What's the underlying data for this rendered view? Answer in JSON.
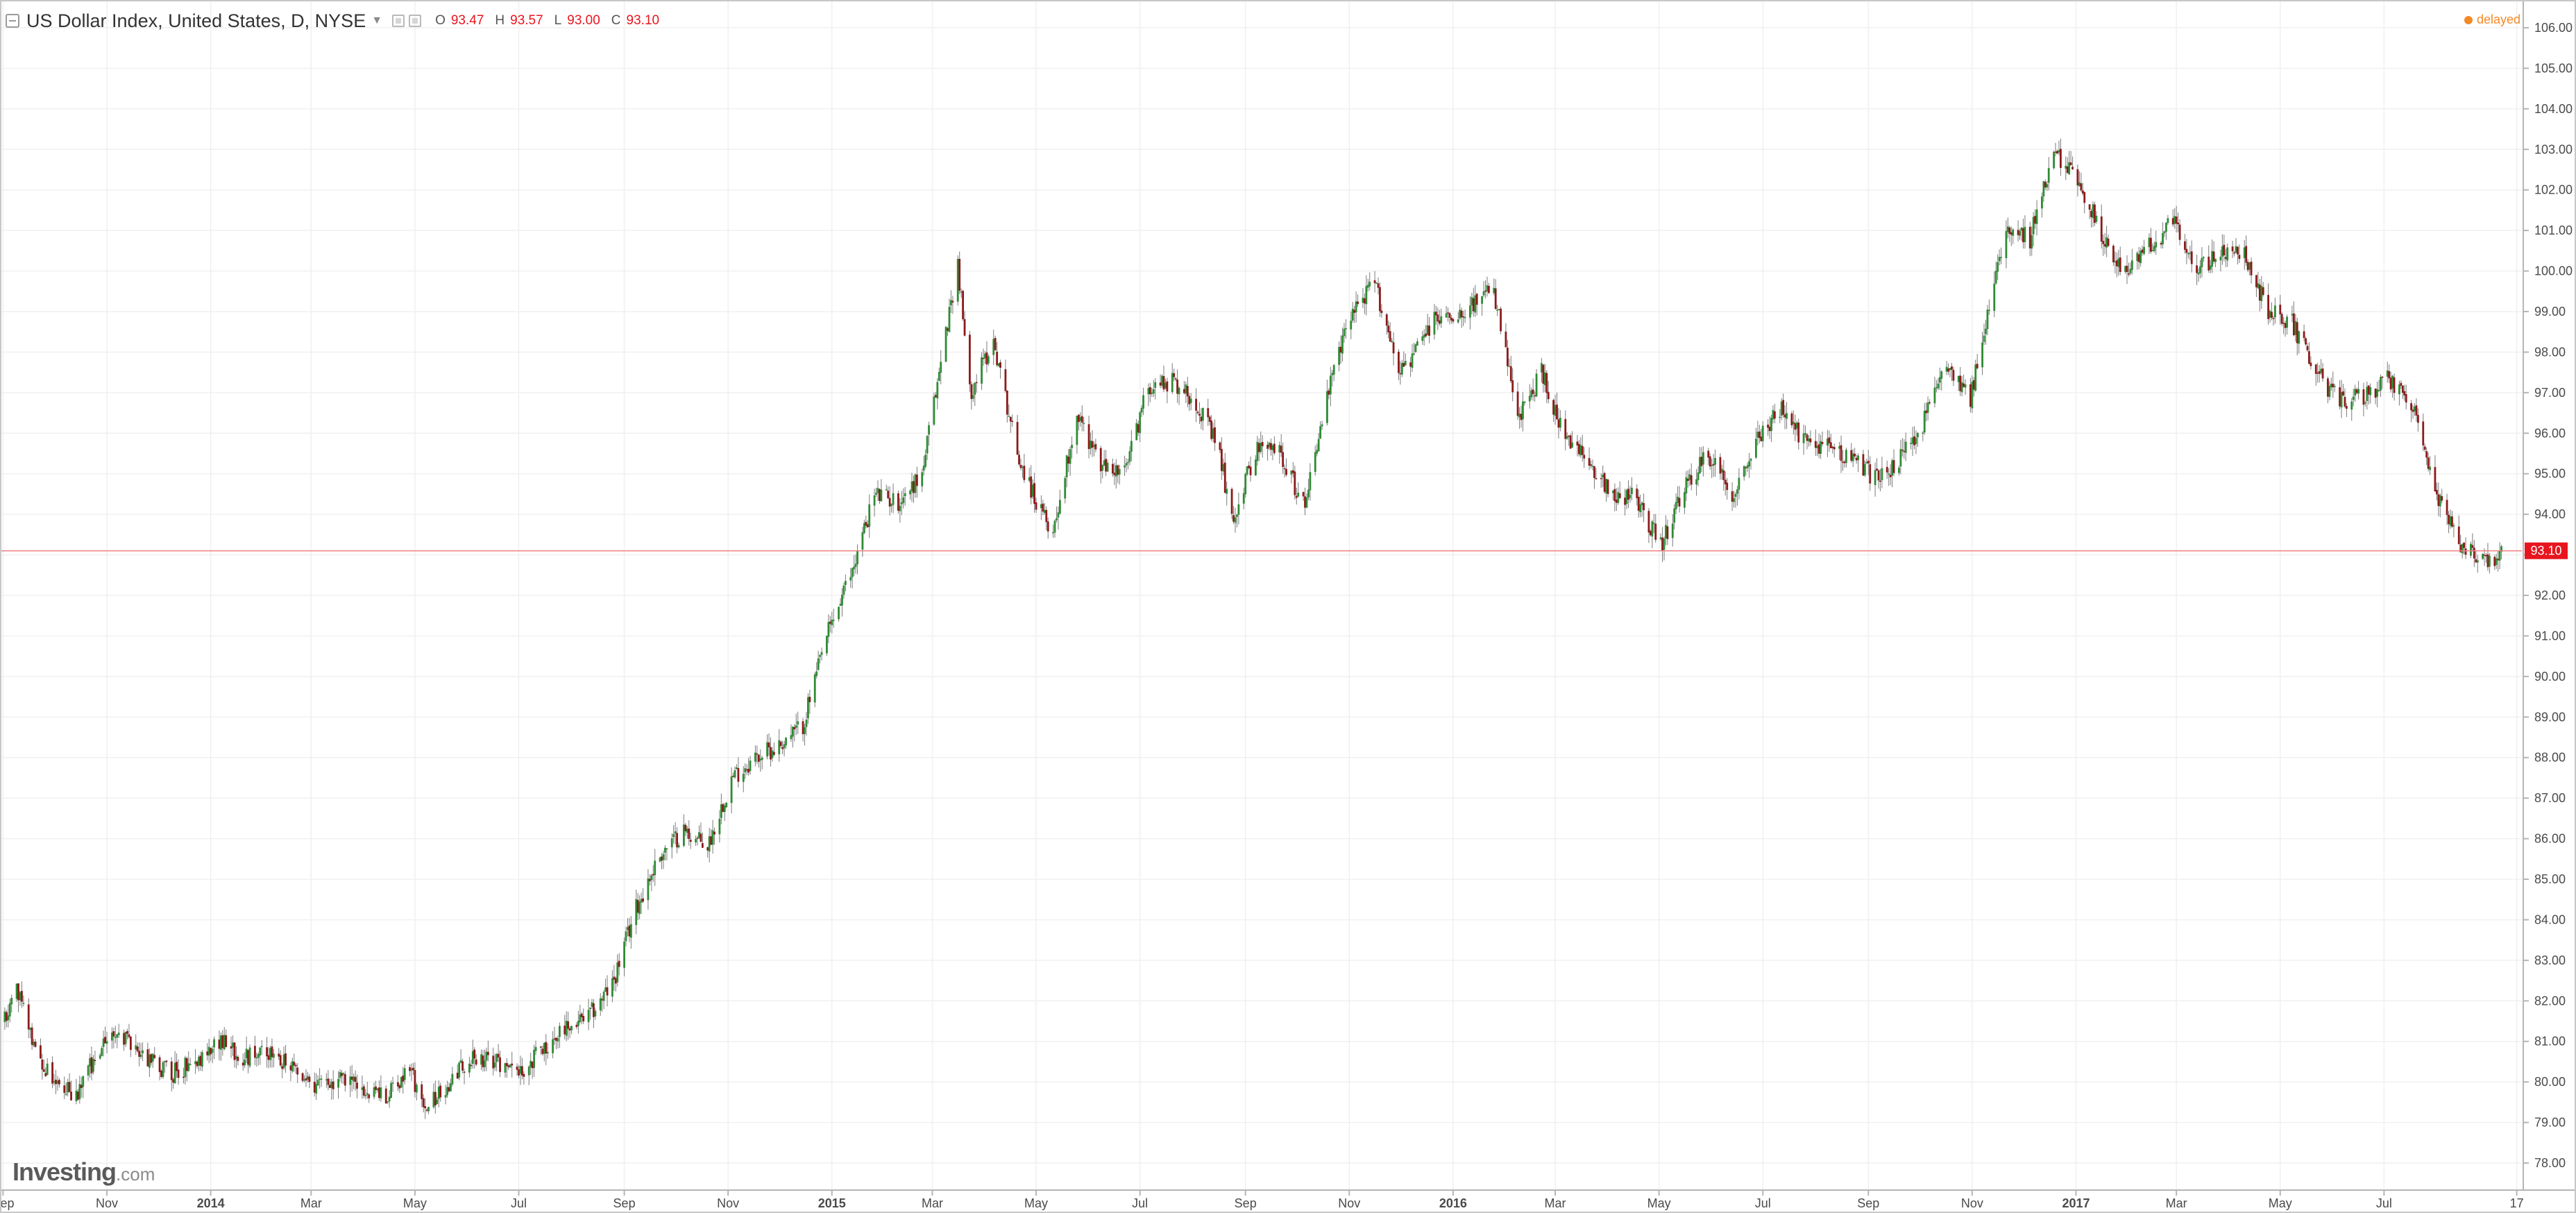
{
  "header": {
    "title": "US Dollar Index, United States, D, NYSE",
    "ohlc": [
      {
        "key": "O",
        "value": "93.47"
      },
      {
        "key": "H",
        "value": "93.57"
      },
      {
        "key": "L",
        "value": "93.00"
      },
      {
        "key": "C",
        "value": "93.10"
      }
    ]
  },
  "status": {
    "delayed": "delayed"
  },
  "branding": {
    "name": "Investing",
    "suffix": ".com"
  },
  "colors": {
    "up_candle": "#2e8b34",
    "down_candle": "#8b1a1a",
    "price_line": "#f08080",
    "price_tag": "#e8151e",
    "grid": "#f0f0f0",
    "delayed": "#f28a28"
  },
  "chart_data": {
    "type": "line",
    "title": "",
    "candle_style": "candlestick",
    "series": [
      {
        "x": [
          "2013-09-02",
          "2013-09-09",
          "2013-09-16",
          "2013-09-23",
          "2013-09-30",
          "2013-10-14",
          "2013-10-28",
          "2013-11-11",
          "2013-11-25",
          "2013-12-09",
          "2013-12-23",
          "2014-01-06",
          "2014-01-20",
          "2014-02-03",
          "2014-02-17",
          "2014-03-03",
          "2014-03-17",
          "2014-03-31",
          "2014-04-14",
          "2014-04-28",
          "2014-05-05",
          "2014-05-19",
          "2014-06-02",
          "2014-06-16",
          "2014-06-30",
          "2014-07-14",
          "2014-07-28",
          "2014-08-11",
          "2014-08-25",
          "2014-09-08",
          "2014-09-22",
          "2014-10-06",
          "2014-10-20",
          "2014-11-03",
          "2014-11-17",
          "2014-12-01",
          "2014-12-15",
          "2014-12-29",
          "2015-01-12",
          "2015-01-26",
          "2015-02-09",
          "2015-02-23",
          "2015-03-09",
          "2015-03-16",
          "2015-03-23",
          "2015-04-06",
          "2015-04-20",
          "2015-05-04",
          "2015-05-11",
          "2015-05-25",
          "2015-06-08",
          "2015-06-22",
          "2015-07-06",
          "2015-07-20",
          "2015-08-03",
          "2015-08-17",
          "2015-08-24",
          "2015-09-07",
          "2015-09-21",
          "2015-10-05",
          "2015-10-19",
          "2015-11-02",
          "2015-11-16",
          "2015-11-30",
          "2015-12-07",
          "2015-12-21",
          "2016-01-04",
          "2016-01-25",
          "2016-02-08",
          "2016-02-22",
          "2016-03-07",
          "2016-03-21",
          "2016-04-04",
          "2016-04-18",
          "2016-05-02",
          "2016-05-16",
          "2016-05-30",
          "2016-06-13",
          "2016-06-27",
          "2016-07-11",
          "2016-07-25",
          "2016-08-08",
          "2016-08-22",
          "2016-09-05",
          "2016-09-19",
          "2016-10-03",
          "2016-10-17",
          "2016-10-31",
          "2016-11-07",
          "2016-11-21",
          "2016-12-05",
          "2016-12-19",
          "2017-01-02",
          "2017-01-16",
          "2017-01-30",
          "2017-02-13",
          "2017-02-27",
          "2017-03-13",
          "2017-03-27",
          "2017-04-10",
          "2017-04-24",
          "2017-05-08",
          "2017-05-22",
          "2017-06-05",
          "2017-06-19",
          "2017-07-03",
          "2017-07-17",
          "2017-07-31",
          "2017-08-14",
          "2017-08-28",
          "2017-09-11"
        ],
        "y": [
          81.5,
          82.4,
          81.3,
          80.5,
          80.2,
          79.6,
          80.9,
          81.1,
          80.6,
          80.2,
          80.5,
          81.0,
          80.6,
          80.8,
          80.3,
          79.8,
          80.1,
          79.8,
          79.6,
          80.3,
          79.4,
          79.8,
          80.6,
          80.5,
          80.2,
          80.8,
          81.3,
          81.6,
          82.4,
          84.3,
          85.6,
          86.2,
          85.8,
          87.5,
          88.0,
          88.3,
          88.8,
          91.0,
          92.5,
          94.5,
          94.3,
          95.0,
          98.5,
          100.2,
          97.0,
          98.3,
          95.5,
          94.0,
          93.6,
          96.5,
          95.2,
          95.0,
          97.2,
          97.3,
          96.8,
          95.5,
          93.8,
          95.6,
          95.6,
          94.2,
          96.9,
          99.0,
          99.7,
          97.6,
          97.8,
          98.8,
          99.0,
          99.5,
          96.3,
          97.5,
          95.8,
          95.3,
          94.5,
          94.4,
          93.2,
          94.6,
          95.5,
          94.5,
          95.8,
          96.6,
          95.8,
          95.7,
          95.4,
          94.9,
          95.3,
          96.2,
          97.8,
          96.9,
          98.2,
          101.2,
          100.8,
          102.9,
          102.3,
          100.9,
          99.9,
          100.6,
          101.2,
          100.1,
          100.4,
          100.4,
          99.0,
          98.7,
          97.5,
          96.8,
          96.9,
          97.3,
          96.8,
          94.5,
          93.3,
          92.8,
          93.1
        ]
      }
    ],
    "y_ticks": [
      "106.00",
      "105.00",
      "104.00",
      "103.00",
      "102.00",
      "101.00",
      "100.00",
      "99.00",
      "98.00",
      "97.00",
      "96.00",
      "95.00",
      "94.00",
      "93.00",
      "92.00",
      "91.00",
      "90.00",
      "89.00",
      "88.00",
      "87.00",
      "86.00",
      "85.00",
      "84.00",
      "83.00",
      "82.00",
      "81.00",
      "80.00",
      "79.00",
      "78.00"
    ],
    "x_ticks": [
      {
        "label": "Sep",
        "date": "2013-09-01",
        "bold": false
      },
      {
        "label": "Nov",
        "date": "2013-11-01",
        "bold": false
      },
      {
        "label": "2014",
        "date": "2014-01-01",
        "bold": true
      },
      {
        "label": "Mar",
        "date": "2014-03-01",
        "bold": false
      },
      {
        "label": "May",
        "date": "2014-05-01",
        "bold": false
      },
      {
        "label": "Jul",
        "date": "2014-07-01",
        "bold": false
      },
      {
        "label": "Sep",
        "date": "2014-09-01",
        "bold": false
      },
      {
        "label": "Nov",
        "date": "2014-11-01",
        "bold": false
      },
      {
        "label": "2015",
        "date": "2015-01-01",
        "bold": true
      },
      {
        "label": "Mar",
        "date": "2015-03-01",
        "bold": false
      },
      {
        "label": "May",
        "date": "2015-05-01",
        "bold": false
      },
      {
        "label": "Jul",
        "date": "2015-07-01",
        "bold": false
      },
      {
        "label": "Sep",
        "date": "2015-09-01",
        "bold": false
      },
      {
        "label": "Nov",
        "date": "2015-11-01",
        "bold": false
      },
      {
        "label": "2016",
        "date": "2016-01-01",
        "bold": true
      },
      {
        "label": "Mar",
        "date": "2016-03-01",
        "bold": false
      },
      {
        "label": "May",
        "date": "2016-05-01",
        "bold": false
      },
      {
        "label": "Jul",
        "date": "2016-07-01",
        "bold": false
      },
      {
        "label": "Sep",
        "date": "2016-09-01",
        "bold": false
      },
      {
        "label": "Nov",
        "date": "2016-11-01",
        "bold": false
      },
      {
        "label": "2017",
        "date": "2017-01-01",
        "bold": true
      },
      {
        "label": "Mar",
        "date": "2017-03-01",
        "bold": false
      },
      {
        "label": "May",
        "date": "2017-05-01",
        "bold": false
      },
      {
        "label": "Jul",
        "date": "2017-07-01",
        "bold": false
      },
      {
        "label": "17",
        "date": "2017-09-17",
        "bold": false
      }
    ],
    "xlim": [
      "2013-08-31",
      "2017-09-20"
    ],
    "ylim": [
      77.35,
      106.65
    ],
    "last_price": 93.1,
    "last_price_label": "93.10",
    "grid": true,
    "legend": "none"
  }
}
